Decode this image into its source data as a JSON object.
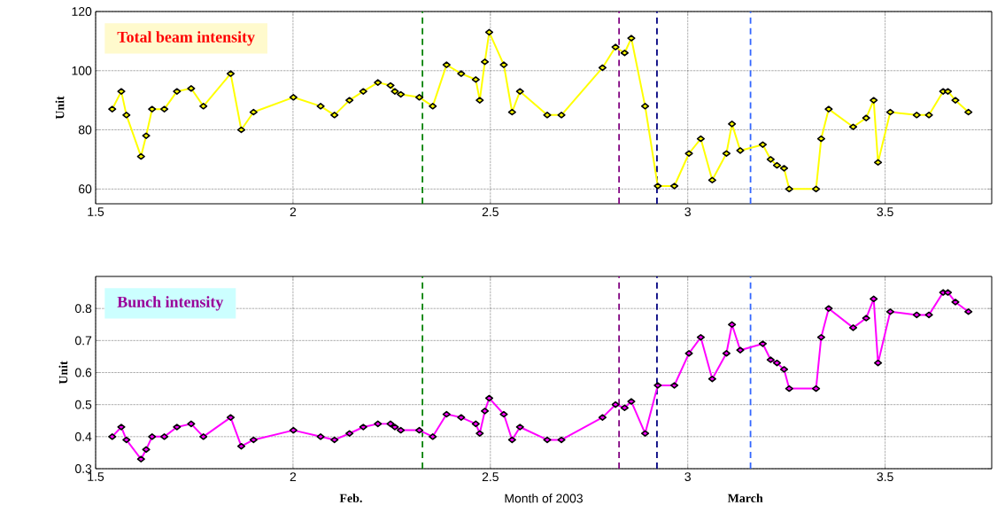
{
  "chart_data": [
    {
      "type": "line",
      "title": "Total beam intensity",
      "ylabel": "Unit",
      "x": [
        1.542,
        1.565,
        1.578,
        1.615,
        1.628,
        1.643,
        1.674,
        1.706,
        1.742,
        1.773,
        1.842,
        1.869,
        1.9,
        2.001,
        2.07,
        2.105,
        2.143,
        2.178,
        2.215,
        2.247,
        2.258,
        2.273,
        2.32,
        2.354,
        2.389,
        2.426,
        2.463,
        2.473,
        2.486,
        2.497,
        2.534,
        2.555,
        2.575,
        2.644,
        2.68,
        2.784,
        2.817,
        2.84,
        2.857,
        2.892,
        2.924,
        2.966,
        3.003,
        3.033,
        3.062,
        3.098,
        3.112,
        3.133,
        3.19,
        3.21,
        3.226,
        3.244,
        3.257,
        3.325,
        3.338,
        3.357,
        3.419,
        3.452,
        3.471,
        3.482,
        3.513,
        3.58,
        3.611,
        3.647,
        3.659,
        3.678,
        3.711
      ],
      "series": [
        {
          "color": "#ffff00",
          "values": [
            87,
            93,
            85,
            71,
            78,
            87,
            87,
            93,
            94,
            88,
            99,
            80,
            86,
            91,
            88,
            85,
            90,
            93,
            96,
            95,
            93,
            92,
            91,
            88,
            102,
            99,
            97,
            90,
            103,
            113,
            102,
            86,
            93,
            85,
            85,
            101,
            108,
            106,
            111,
            88,
            61,
            61,
            72,
            77,
            63,
            72,
            82,
            73,
            75,
            70,
            68,
            67,
            60,
            60,
            77,
            87,
            81,
            84,
            90,
            69,
            86,
            85,
            85,
            93,
            93,
            90,
            86
          ]
        }
      ],
      "xlim": [
        1.5,
        3.77
      ],
      "ylim": [
        55,
        120
      ],
      "xticks": [
        1.5,
        2,
        2.5,
        3,
        3.5
      ],
      "yticks": [
        60,
        80,
        100,
        120
      ],
      "grid": true,
      "marker": "diamond",
      "line_style": "solid",
      "ref_lines": [
        {
          "axis": "x",
          "value": 2.328,
          "color": "#008000",
          "line_style": "dashed"
        },
        {
          "axis": "x",
          "value": 2.826,
          "color": "#800080",
          "line_style": "dashed"
        },
        {
          "axis": "x",
          "value": 2.922,
          "color": "#000080",
          "line_style": "dashed"
        },
        {
          "axis": "x",
          "value": 3.159,
          "color": "#3366ff",
          "line_style": "dashed"
        }
      ]
    },
    {
      "type": "line",
      "title": "Bunch intensity",
      "ylabel": "Unit",
      "xlabel": "Month of 2003",
      "annotations": [
        "Feb.",
        "March"
      ],
      "x": [
        1.542,
        1.565,
        1.578,
        1.615,
        1.628,
        1.643,
        1.674,
        1.706,
        1.742,
        1.773,
        1.842,
        1.869,
        1.9,
        2.001,
        2.07,
        2.105,
        2.143,
        2.178,
        2.215,
        2.247,
        2.258,
        2.273,
        2.32,
        2.354,
        2.389,
        2.426,
        2.463,
        2.473,
        2.486,
        2.497,
        2.534,
        2.555,
        2.575,
        2.644,
        2.68,
        2.784,
        2.817,
        2.84,
        2.857,
        2.892,
        2.924,
        2.966,
        3.003,
        3.033,
        3.062,
        3.098,
        3.112,
        3.133,
        3.19,
        3.21,
        3.226,
        3.244,
        3.257,
        3.325,
        3.338,
        3.357,
        3.419,
        3.452,
        3.471,
        3.482,
        3.513,
        3.58,
        3.611,
        3.647,
        3.659,
        3.678,
        3.711
      ],
      "series": [
        {
          "color": "#ff00ff",
          "values": [
            0.4,
            0.43,
            0.39,
            0.33,
            0.36,
            0.4,
            0.4,
            0.43,
            0.44,
            0.4,
            0.46,
            0.37,
            0.39,
            0.42,
            0.4,
            0.39,
            0.41,
            0.43,
            0.44,
            0.44,
            0.43,
            0.42,
            0.42,
            0.4,
            0.47,
            0.46,
            0.44,
            0.41,
            0.48,
            0.52,
            0.47,
            0.39,
            0.43,
            0.39,
            0.39,
            0.46,
            0.5,
            0.49,
            0.51,
            0.41,
            0.56,
            0.56,
            0.66,
            0.71,
            0.58,
            0.66,
            0.75,
            0.67,
            0.69,
            0.64,
            0.63,
            0.61,
            0.55,
            0.55,
            0.71,
            0.8,
            0.74,
            0.77,
            0.83,
            0.63,
            0.79,
            0.78,
            0.78,
            0.85,
            0.85,
            0.82,
            0.79
          ]
        }
      ],
      "xlim": [
        1.5,
        3.77
      ],
      "ylim": [
        0.3,
        0.9
      ],
      "xticks": [
        1.5,
        2,
        2.5,
        3,
        3.5
      ],
      "yticks": [
        0.3,
        0.4,
        0.5,
        0.6,
        0.7,
        0.8
      ],
      "grid": true,
      "marker": "diamond",
      "line_style": "solid",
      "ref_lines": [
        {
          "axis": "x",
          "value": 2.328,
          "color": "#008000",
          "line_style": "dashed"
        },
        {
          "axis": "x",
          "value": 2.826,
          "color": "#800080",
          "line_style": "dashed"
        },
        {
          "axis": "x",
          "value": 2.922,
          "color": "#000080",
          "line_style": "dashed"
        },
        {
          "axis": "x",
          "value": 3.159,
          "color": "#3366ff",
          "line_style": "dashed"
        }
      ]
    }
  ]
}
